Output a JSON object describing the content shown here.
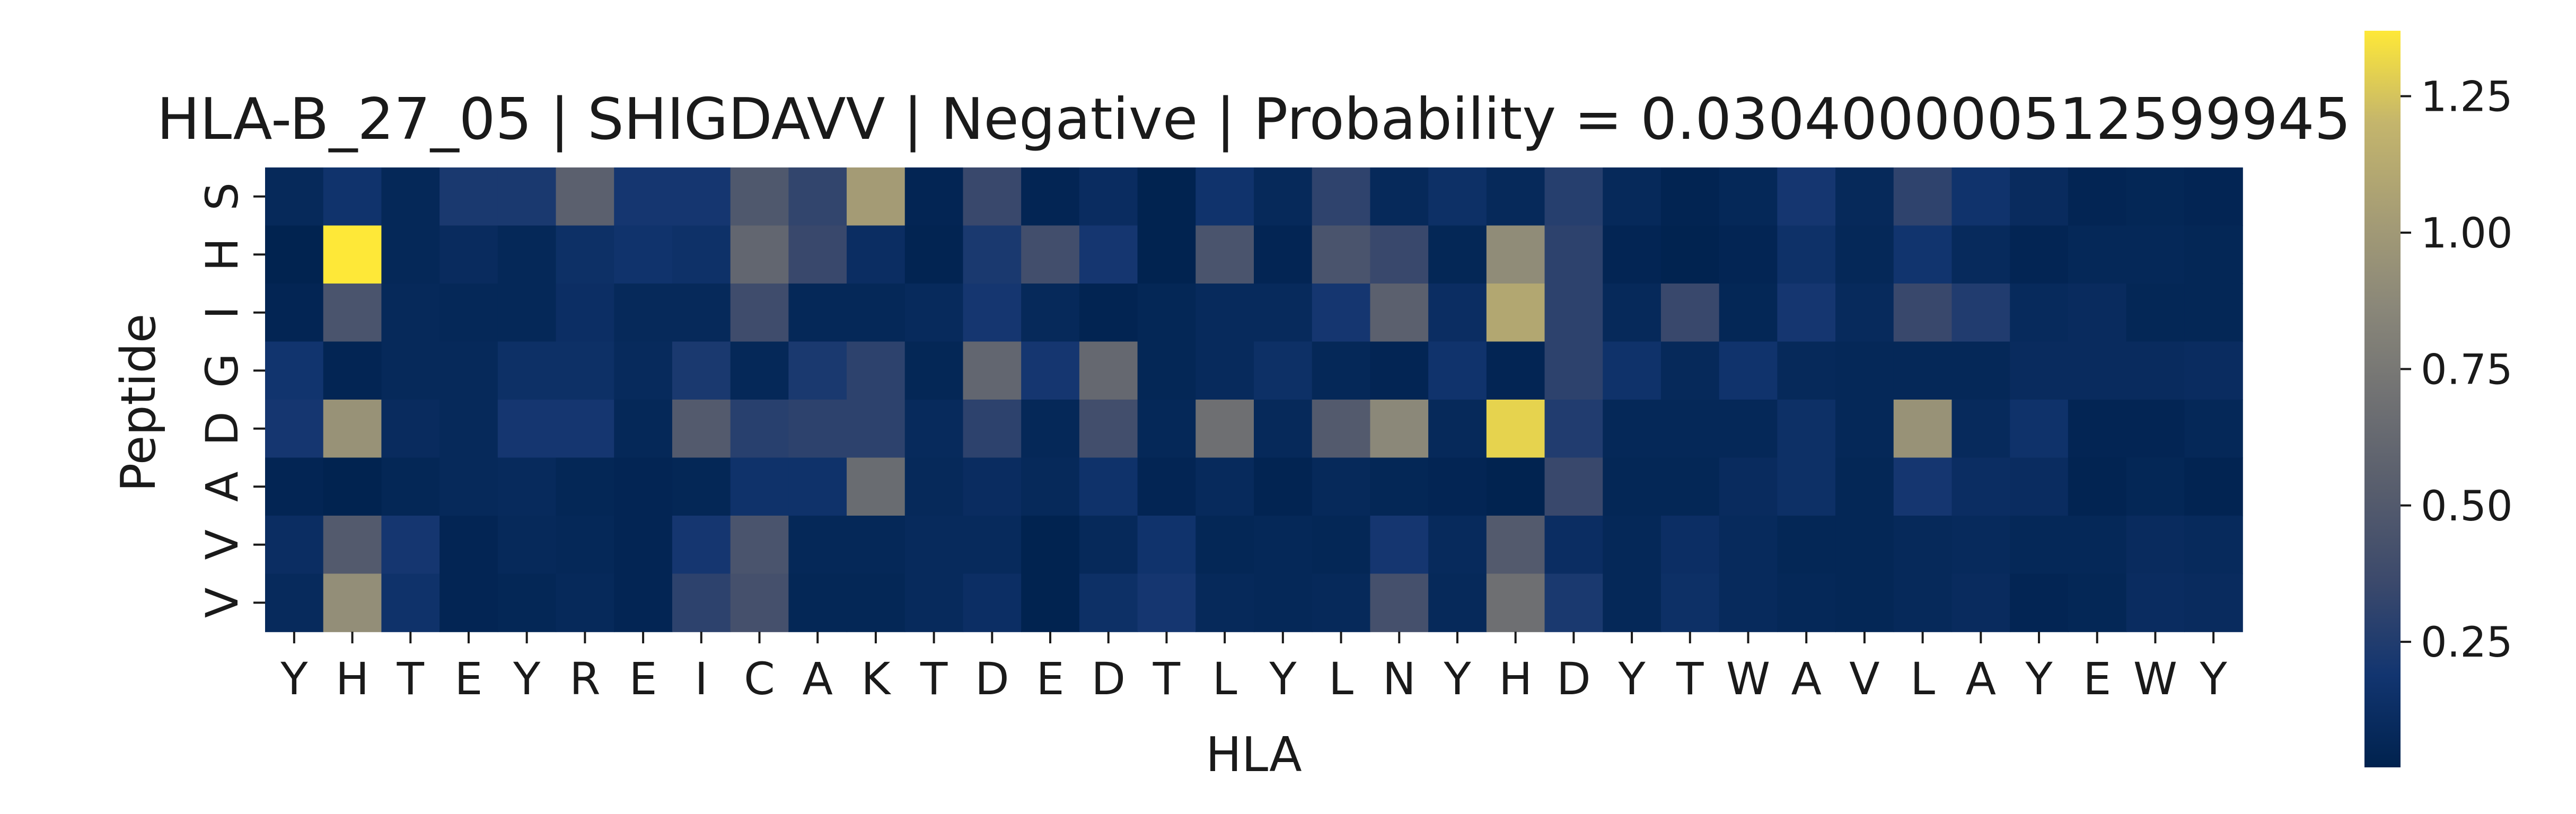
{
  "chart_data": {
    "type": "heatmap",
    "title": "HLA-B_27_05 | SHIGDAVV | Negative | Probability = 0.030400000512599945",
    "xlabel": "HLA",
    "ylabel": "Peptide",
    "x_categories": [
      "Y",
      "H",
      "T",
      "E",
      "Y",
      "R",
      "E",
      "I",
      "C",
      "A",
      "K",
      "T",
      "D",
      "E",
      "D",
      "T",
      "L",
      "Y",
      "L",
      "N",
      "Y",
      "H",
      "D",
      "Y",
      "T",
      "W",
      "A",
      "V",
      "L",
      "A",
      "Y",
      "E",
      "W",
      "Y"
    ],
    "y_categories": [
      "S",
      "H",
      "I",
      "G",
      "D",
      "A",
      "V",
      "V"
    ],
    "colormap": "cividis",
    "vmin": 0.02,
    "vmax": 1.37,
    "colorbar_ticks": [
      0.25,
      0.5,
      0.75,
      1.0,
      1.25
    ],
    "colorbar_tick_labels": [
      "0.25",
      "0.50",
      "0.75",
      "1.00",
      "1.25"
    ],
    "values": [
      [
        0.08,
        0.17,
        0.07,
        0.22,
        0.22,
        0.55,
        0.2,
        0.2,
        0.48,
        0.32,
        1.02,
        0.05,
        0.35,
        0.05,
        0.11,
        0.03,
        0.17,
        0.08,
        0.31,
        0.08,
        0.14,
        0.08,
        0.27,
        0.08,
        0.04,
        0.07,
        0.2,
        0.08,
        0.31,
        0.17,
        0.1,
        0.05,
        0.06,
        0.05
      ],
      [
        0.03,
        1.37,
        0.07,
        0.1,
        0.07,
        0.14,
        0.17,
        0.15,
        0.6,
        0.35,
        0.12,
        0.04,
        0.22,
        0.4,
        0.2,
        0.03,
        0.45,
        0.05,
        0.45,
        0.35,
        0.06,
        0.9,
        0.3,
        0.05,
        0.03,
        0.05,
        0.15,
        0.07,
        0.18,
        0.09,
        0.05,
        0.07,
        0.07,
        0.06
      ],
      [
        0.05,
        0.45,
        0.08,
        0.07,
        0.07,
        0.13,
        0.08,
        0.08,
        0.38,
        0.07,
        0.07,
        0.09,
        0.2,
        0.08,
        0.04,
        0.06,
        0.09,
        0.09,
        0.2,
        0.55,
        0.12,
        1.1,
        0.3,
        0.08,
        0.35,
        0.06,
        0.2,
        0.09,
        0.35,
        0.25,
        0.09,
        0.1,
        0.06,
        0.06
      ],
      [
        0.18,
        0.05,
        0.08,
        0.08,
        0.14,
        0.14,
        0.09,
        0.22,
        0.07,
        0.22,
        0.3,
        0.06,
        0.6,
        0.2,
        0.62,
        0.06,
        0.09,
        0.14,
        0.07,
        0.05,
        0.17,
        0.05,
        0.3,
        0.16,
        0.08,
        0.17,
        0.08,
        0.07,
        0.07,
        0.07,
        0.1,
        0.1,
        0.1,
        0.11
      ],
      [
        0.2,
        0.95,
        0.1,
        0.08,
        0.2,
        0.2,
        0.07,
        0.5,
        0.28,
        0.3,
        0.3,
        0.09,
        0.3,
        0.07,
        0.4,
        0.07,
        0.68,
        0.08,
        0.5,
        0.87,
        0.08,
        1.3,
        0.25,
        0.07,
        0.07,
        0.07,
        0.14,
        0.07,
        0.95,
        0.09,
        0.16,
        0.05,
        0.05,
        0.07
      ],
      [
        0.05,
        0.03,
        0.06,
        0.08,
        0.09,
        0.06,
        0.05,
        0.06,
        0.16,
        0.16,
        0.65,
        0.08,
        0.11,
        0.08,
        0.16,
        0.05,
        0.09,
        0.04,
        0.08,
        0.06,
        0.05,
        0.03,
        0.35,
        0.06,
        0.06,
        0.1,
        0.14,
        0.06,
        0.2,
        0.12,
        0.11,
        0.04,
        0.06,
        0.04
      ],
      [
        0.12,
        0.5,
        0.2,
        0.05,
        0.08,
        0.07,
        0.05,
        0.2,
        0.45,
        0.07,
        0.07,
        0.09,
        0.09,
        0.03,
        0.08,
        0.17,
        0.06,
        0.07,
        0.06,
        0.2,
        0.09,
        0.5,
        0.12,
        0.07,
        0.13,
        0.09,
        0.06,
        0.06,
        0.08,
        0.09,
        0.07,
        0.07,
        0.1,
        0.09
      ],
      [
        0.09,
        0.92,
        0.16,
        0.05,
        0.06,
        0.08,
        0.05,
        0.3,
        0.42,
        0.06,
        0.06,
        0.09,
        0.13,
        0.03,
        0.14,
        0.2,
        0.08,
        0.07,
        0.08,
        0.42,
        0.08,
        0.68,
        0.22,
        0.07,
        0.14,
        0.09,
        0.07,
        0.06,
        0.08,
        0.1,
        0.05,
        0.06,
        0.11,
        0.1
      ]
    ]
  }
}
